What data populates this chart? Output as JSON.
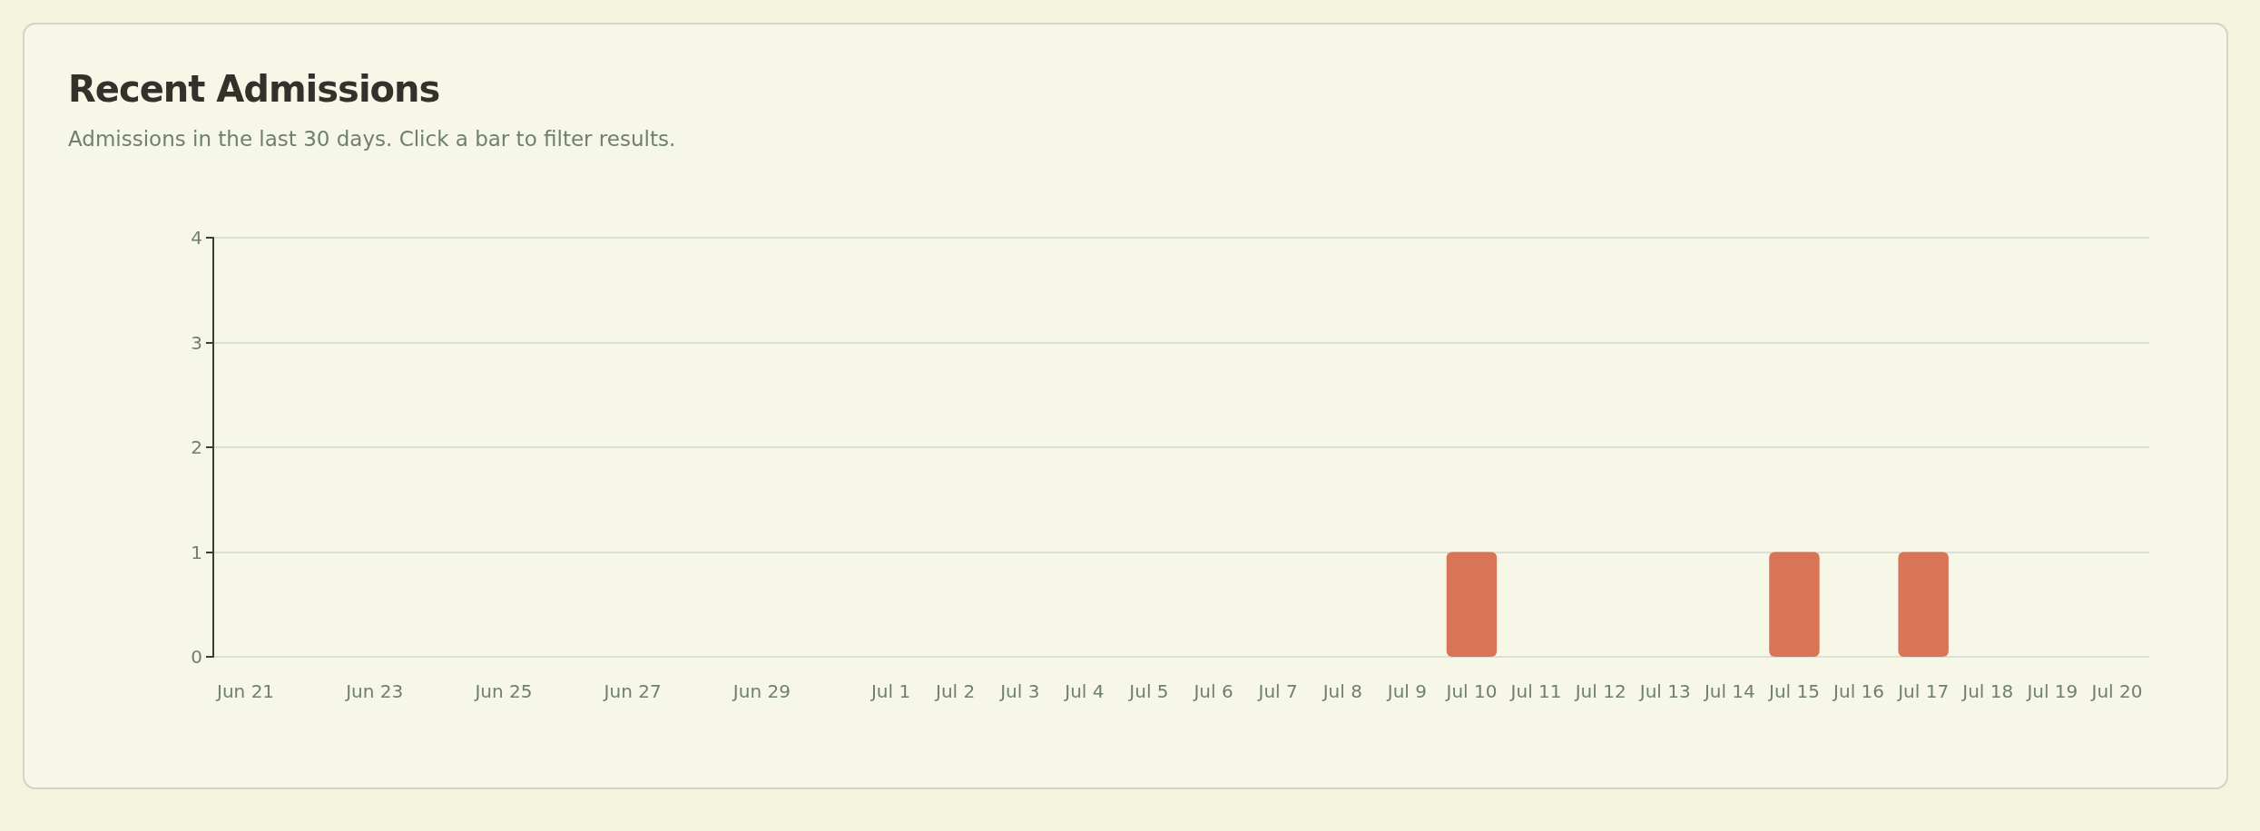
{
  "chart_data": {
    "type": "bar",
    "title": "Recent Admissions",
    "subtitle": "Admissions in the last 30 days. Click a bar to filter results.",
    "categories": [
      "Jun 21",
      null,
      "Jun 23",
      null,
      "Jun 25",
      null,
      "Jun 27",
      null,
      "Jun 29",
      null,
      "Jul 1",
      "Jul 2",
      "Jul 3",
      "Jul 4",
      "Jul 5",
      "Jul 6",
      "Jul 7",
      "Jul 8",
      "Jul 9",
      "Jul 10",
      "Jul 11",
      "Jul 12",
      "Jul 13",
      "Jul 14",
      "Jul 15",
      "Jul 16",
      "Jul 17",
      "Jul 18",
      "Jul 19",
      "Jul 20"
    ],
    "values": [
      0,
      0,
      0,
      0,
      0,
      0,
      0,
      0,
      0,
      0,
      0,
      0,
      0,
      0,
      0,
      0,
      0,
      0,
      0,
      1,
      0,
      0,
      0,
      0,
      1,
      0,
      1,
      0,
      0,
      0
    ],
    "color": "#d97557",
    "ylim": [
      0,
      4
    ],
    "yticks": [
      0,
      1,
      2,
      3,
      4
    ],
    "grid": "y"
  }
}
